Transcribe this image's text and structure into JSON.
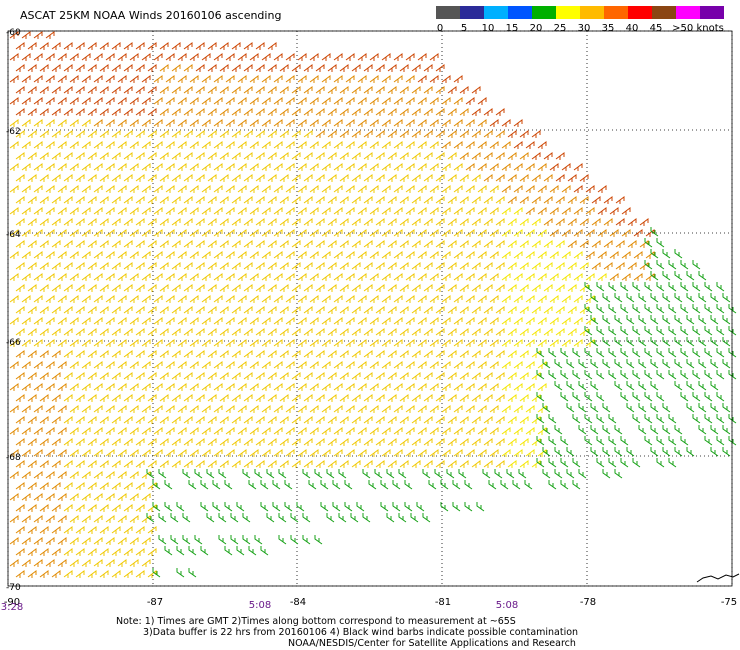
{
  "title": "ASCAT 25KM NOAA Winds 20160106 ascending",
  "legend": {
    "colors": [
      "#555555",
      "#2b2b99",
      "#00b0ff",
      "#0055ff",
      "#00b000",
      "#ffff00",
      "#ffbb00",
      "#ff6600",
      "#ff0000",
      "#8b4513",
      "#ff00ff",
      "#7700aa"
    ],
    "labels": [
      "0",
      "5",
      "10",
      "15",
      "20",
      "25",
      "30",
      "35",
      "40",
      "45",
      ">50 knots"
    ]
  },
  "lat_labels": [
    "-60",
    "-62",
    "-64",
    "-66",
    "-68",
    "-70"
  ],
  "lon_labels": [
    "-90",
    "-87",
    "-84",
    "-81",
    "-78",
    "-75"
  ],
  "times": [
    "3:28",
    "5:08",
    "5:08"
  ],
  "notes": [
    "Note: 1) Times are GMT 2)Times along bottom correspond to measurement at ~65S",
    "3)Data buffer is 22 hrs from 20160106 4) Black wind barbs indicate possible contamination",
    "NOAA/NESDIS/Center for Satellite Applications and Research"
  ],
  "wind_colors": {
    "strong": "#cc4400",
    "mid": "#e08a00",
    "light": "#f0c800",
    "pale": "#f5e600",
    "green": "#14a014"
  }
}
